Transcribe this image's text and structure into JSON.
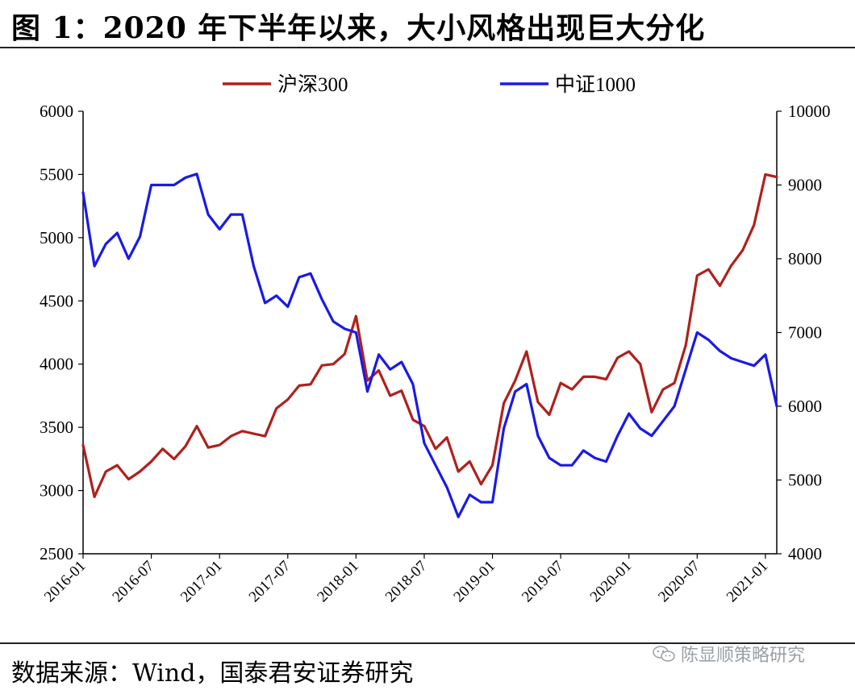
{
  "title": "图 1：2020 年下半年以来，大小风格出现巨大分化",
  "source": "数据来源：Wind，国泰君安证券研究",
  "watermark": "陈显顺策略研究",
  "colors": {
    "hs300": "#b0201c",
    "zz1000": "#1a1ae6",
    "axis": "#000000"
  },
  "chart_data": {
    "type": "line",
    "legend_position": "top-center",
    "grid": false,
    "x_range": [
      "2016-01",
      "2021-02"
    ],
    "x_ticks": [
      "2016-01",
      "2016-07",
      "2017-01",
      "2017-07",
      "2018-01",
      "2018-07",
      "2019-01",
      "2019-07",
      "2020-01",
      "2020-07",
      "2021-01"
    ],
    "y_left": {
      "min": 2500,
      "max": 6000,
      "ticks": [
        2500,
        3000,
        3500,
        4000,
        4500,
        5000,
        5500,
        6000
      ]
    },
    "y_right": {
      "min": 4000,
      "max": 10000,
      "ticks": [
        4000,
        5000,
        6000,
        7000,
        8000,
        9000,
        10000
      ]
    },
    "series": [
      {
        "name": "沪深300",
        "axis": "left",
        "x": [
          "2016-01",
          "2016-02",
          "2016-03",
          "2016-04",
          "2016-05",
          "2016-06",
          "2016-07",
          "2016-08",
          "2016-09",
          "2016-10",
          "2016-11",
          "2016-12",
          "2017-01",
          "2017-02",
          "2017-03",
          "2017-04",
          "2017-05",
          "2017-06",
          "2017-07",
          "2017-08",
          "2017-09",
          "2017-10",
          "2017-11",
          "2017-12",
          "2018-01",
          "2018-02",
          "2018-03",
          "2018-04",
          "2018-05",
          "2018-06",
          "2018-07",
          "2018-08",
          "2018-09",
          "2018-10",
          "2018-11",
          "2018-12",
          "2019-01",
          "2019-02",
          "2019-03",
          "2019-04",
          "2019-05",
          "2019-06",
          "2019-07",
          "2019-08",
          "2019-09",
          "2019-10",
          "2019-11",
          "2019-12",
          "2020-01",
          "2020-02",
          "2020-03",
          "2020-04",
          "2020-05",
          "2020-06",
          "2020-07",
          "2020-08",
          "2020-09",
          "2020-10",
          "2020-11",
          "2020-12",
          "2021-01",
          "2021-02"
        ],
        "values": [
          3360,
          2950,
          3150,
          3200,
          3090,
          3150,
          3230,
          3330,
          3250,
          3350,
          3510,
          3340,
          3360,
          3430,
          3470,
          3450,
          3430,
          3650,
          3720,
          3830,
          3840,
          3990,
          4000,
          4080,
          4380,
          3870,
          3950,
          3750,
          3790,
          3560,
          3510,
          3330,
          3420,
          3150,
          3230,
          3050,
          3200,
          3690,
          3870,
          4100,
          3700,
          3600,
          3850,
          3800,
          3900,
          3900,
          3880,
          4050,
          4100,
          4000,
          3620,
          3800,
          3850,
          4150,
          4700,
          4750,
          4620,
          4780,
          4900,
          5100,
          5500,
          5480
        ]
      },
      {
        "name": "中证1000",
        "axis": "right",
        "x": [
          "2016-01",
          "2016-02",
          "2016-03",
          "2016-04",
          "2016-05",
          "2016-06",
          "2016-07",
          "2016-08",
          "2016-09",
          "2016-10",
          "2016-11",
          "2016-12",
          "2017-01",
          "2017-02",
          "2017-03",
          "2017-04",
          "2017-05",
          "2017-06",
          "2017-07",
          "2017-08",
          "2017-09",
          "2017-10",
          "2017-11",
          "2017-12",
          "2018-01",
          "2018-02",
          "2018-03",
          "2018-04",
          "2018-05",
          "2018-06",
          "2018-07",
          "2018-08",
          "2018-09",
          "2018-10",
          "2018-11",
          "2018-12",
          "2019-01",
          "2019-02",
          "2019-03",
          "2019-04",
          "2019-05",
          "2019-06",
          "2019-07",
          "2019-08",
          "2019-09",
          "2019-10",
          "2019-11",
          "2019-12",
          "2020-01",
          "2020-02",
          "2020-03",
          "2020-04",
          "2020-05",
          "2020-06",
          "2020-07",
          "2020-08",
          "2020-09",
          "2020-10",
          "2020-11",
          "2020-12",
          "2021-01",
          "2021-02"
        ],
        "values": [
          8900,
          7900,
          8200,
          8350,
          8000,
          8300,
          9000,
          9000,
          9000,
          9100,
          9150,
          8600,
          8400,
          8600,
          8600,
          7900,
          7400,
          7500,
          7350,
          7750,
          7800,
          7450,
          7150,
          7050,
          7000,
          6200,
          6700,
          6500,
          6600,
          6300,
          5500,
          5200,
          4900,
          4500,
          4800,
          4700,
          4700,
          5700,
          6200,
          6300,
          5600,
          5300,
          5200,
          5200,
          5400,
          5300,
          5250,
          5600,
          5900,
          5700,
          5600,
          5800,
          6000,
          6500,
          7000,
          6900,
          6750,
          6650,
          6600,
          6550,
          6700,
          6000
        ]
      }
    ]
  }
}
